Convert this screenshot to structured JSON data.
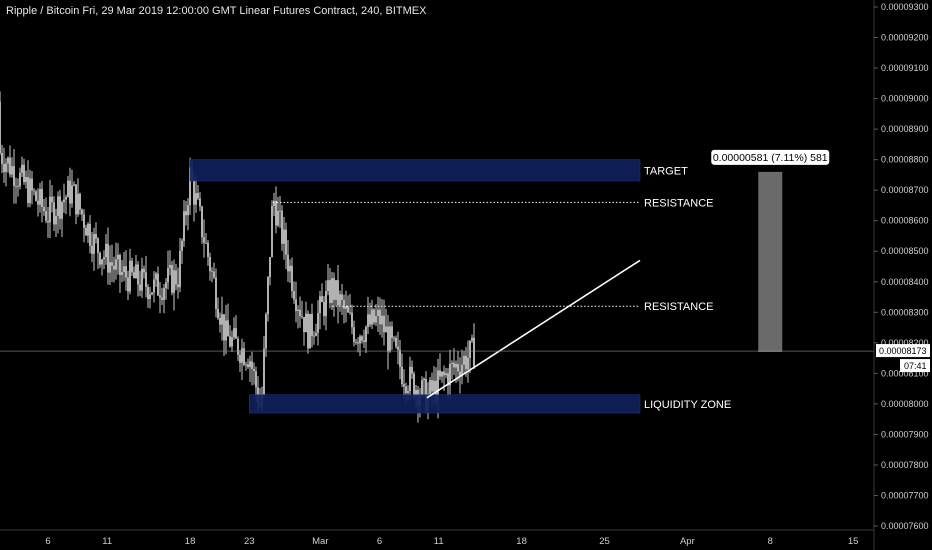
{
  "header": {
    "title": "Ripple / Bitcoin Fri, 29 Mar 2019 12:00:00 GMT Linear Futures Contract, 240, BITMEX"
  },
  "colors": {
    "background": "#000000",
    "candle": "#ffffff",
    "zone": "#0f1f5a",
    "measure_bar": "#6a6a6a",
    "trendline": "#ffffff"
  },
  "price_badge": {
    "price": "0.00008173",
    "countdown": "07:41"
  },
  "annotations": {
    "target_label": "TARGET",
    "resistance_upper_label": "RESISTANCE",
    "resistance_lower_label": "RESISTANCE",
    "liquidity_label": "LIQUIDITY ZONE",
    "measure_label": "0.00000581 (7.11%) 581"
  },
  "chart_data": {
    "type": "candlestick",
    "title": "Ripple / Bitcoin Fri, 29 Mar 2019 12:00:00 GMT Linear Futures Contract, 240, BITMEX",
    "interval": "240",
    "ylim": [
      7.6e-05,
      9.3e-05
    ],
    "y_ticks": [
      "0.00009300",
      "0.00009200",
      "0.00009100",
      "0.00009000",
      "0.00008900",
      "0.00008800",
      "0.00008700",
      "0.00008600",
      "0.00008500",
      "0.00008400",
      "0.00008300",
      "0.00008200",
      "0.00008100",
      "0.00008000",
      "0.00007900",
      "0.00007800",
      "0.00007700",
      "0.00007600"
    ],
    "x_ticks": [
      {
        "label": "6",
        "date": "2019-02-06"
      },
      {
        "label": "11",
        "date": "2019-02-11"
      },
      {
        "label": "18",
        "date": "2019-02-18"
      },
      {
        "label": "23",
        "date": "2019-02-23"
      },
      {
        "label": "Mar",
        "date": "2019-03-01"
      },
      {
        "label": "6",
        "date": "2019-03-06"
      },
      {
        "label": "11",
        "date": "2019-03-11"
      },
      {
        "label": "18",
        "date": "2019-03-18"
      },
      {
        "label": "25",
        "date": "2019-03-25"
      },
      {
        "label": "Apr",
        "date": "2019-04-01"
      },
      {
        "label": "8",
        "date": "2019-04-08"
      },
      {
        "label": "15",
        "date": "2019-04-15"
      }
    ],
    "approx_close_path": [
      {
        "date": "2019-02-01",
        "price": 8.87e-05
      },
      {
        "date": "2019-02-04",
        "price": 8.72e-05
      },
      {
        "date": "2019-02-06",
        "price": 8.62e-05
      },
      {
        "date": "2019-02-08",
        "price": 8.7e-05
      },
      {
        "date": "2019-02-10",
        "price": 8.52e-05
      },
      {
        "date": "2019-02-12",
        "price": 8.43e-05
      },
      {
        "date": "2019-02-15",
        "price": 8.38e-05
      },
      {
        "date": "2019-02-17",
        "price": 8.42e-05
      },
      {
        "date": "2019-02-18",
        "price": 8.75e-05
      },
      {
        "date": "2019-02-20",
        "price": 8.4e-05
      },
      {
        "date": "2019-02-21",
        "price": 8.22e-05
      },
      {
        "date": "2019-02-23",
        "price": 8.16e-05
      },
      {
        "date": "2019-02-24",
        "price": 7.98e-05
      },
      {
        "date": "2019-02-25",
        "price": 8.68e-05
      },
      {
        "date": "2019-02-27",
        "price": 8.35e-05
      },
      {
        "date": "2019-02-28",
        "price": 8.23e-05
      },
      {
        "date": "2019-03-02",
        "price": 8.38e-05
      },
      {
        "date": "2019-03-04",
        "price": 8.23e-05
      },
      {
        "date": "2019-03-06",
        "price": 8.28e-05
      },
      {
        "date": "2019-03-08",
        "price": 8.1e-05
      },
      {
        "date": "2019-03-10",
        "price": 8.02e-05
      },
      {
        "date": "2019-03-12",
        "price": 8.11e-05
      },
      {
        "date": "2019-03-14",
        "price": 8.17e-05
      }
    ],
    "zones": [
      {
        "label": "TARGET",
        "from_price": 8.73e-05,
        "to_price": 8.8e-05,
        "start_date": "2019-02-18",
        "end_date": "2019-03-28"
      },
      {
        "label": "LIQUIDITY ZONE",
        "from_price": 7.97e-05,
        "to_price": 8.03e-05,
        "start_date": "2019-02-23",
        "end_date": "2019-03-28"
      }
    ],
    "levels": [
      {
        "label": "RESISTANCE",
        "price": 8.66e-05
      },
      {
        "label": "RESISTANCE",
        "price": 8.32e-05
      }
    ],
    "trendline": {
      "start": {
        "date": "2019-03-10",
        "price": 8.02e-05
      },
      "end": {
        "date": "2019-03-28",
        "price": 8.47e-05
      }
    },
    "measure": {
      "label": "0.00000581 (7.11%) 581",
      "from_price": 8.17e-05,
      "to_price": 8.76e-05,
      "date": "2019-04-08"
    },
    "last_price": 8.173e-05,
    "grid": false
  }
}
